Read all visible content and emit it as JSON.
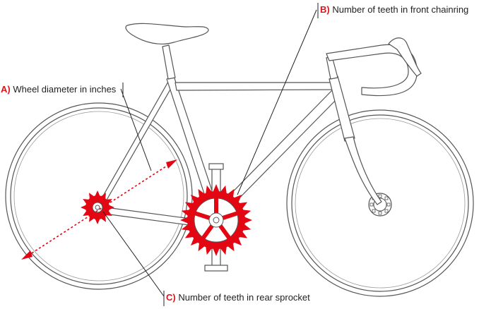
{
  "callouts": {
    "a": {
      "key": "A)",
      "text": "Wheel diameter in inches"
    },
    "b": {
      "key": "B)",
      "text": "Number of teeth in front chainring"
    },
    "c": {
      "key": "C)",
      "text": "Number of teeth in rear sprocket"
    }
  },
  "colors": {
    "line": "#555555",
    "frame_fill": "#ffffff",
    "accent": "#e30613",
    "label_key": "#d9161c",
    "text": "#222222"
  },
  "icons": {
    "bicycle": "road-bicycle-illustration",
    "front_chainring": "chainring-gear-icon",
    "rear_sprocket": "sprocket-gear-icon"
  }
}
